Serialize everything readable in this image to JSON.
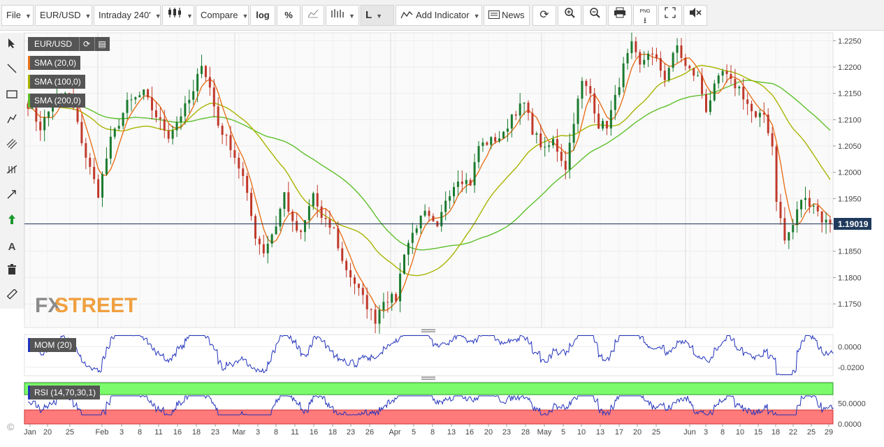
{
  "toolbar": {
    "file": "File",
    "symbol": "EUR/USD",
    "interval": "Intraday 240'",
    "compare": "Compare",
    "log": "log",
    "percent": "%",
    "line_mode": "L",
    "add_indicator": "Add Indicator",
    "news": "News",
    "png": "PNG"
  },
  "left_tools": [
    "cursor-icon",
    "trendline-icon",
    "rectangle-icon",
    "pen-icon",
    "parallel-lines-icon",
    "fibonacci-icon",
    "arrow-icon",
    "up-arrow-icon",
    "text-icon",
    "trash-icon",
    "ruler-icon"
  ],
  "legend": {
    "symbol": "EUR/USD",
    "sma20": "SMA (20,0)",
    "sma100": "SMA (100,0)",
    "sma200": "SMA (200,0)",
    "mom": "MOM (20)",
    "rsi": "RSI (14,70,30,1)"
  },
  "watermark": {
    "fx": "FX",
    "street": "STREET"
  },
  "copyright": "©",
  "colors": {
    "candle_up": "#1a7a2e",
    "candle_down": "#c0392b",
    "sma20": "#e8711c",
    "sma100": "#a8b400",
    "sma200": "#5cc02a",
    "indicator_line": "#2233bb",
    "rsi_overbought": "#7cfc6c",
    "rsi_oversold": "#ff7a7a",
    "price_tag": "#1f3a5c"
  },
  "chart_data": [
    {
      "type": "candlestick",
      "title": "EUR/USD",
      "interval": "Intraday 240'",
      "x_tick_labels": [
        "Jan",
        "20",
        "25",
        "Feb",
        "3",
        "8",
        "11",
        "16",
        "18",
        "23",
        "Mar",
        "3",
        "8",
        "11",
        "16",
        "18",
        "23",
        "26",
        "Apr",
        "5",
        "8",
        "13",
        "16",
        "20",
        "23",
        "28",
        "May",
        "5",
        "10",
        "13",
        "17",
        "20",
        "25",
        "Jun",
        "3",
        "8",
        "10",
        "15",
        "18",
        "22",
        "25",
        "29"
      ],
      "y_tick_labels": [
        "1.2250",
        "1.2200",
        "1.2150",
        "1.2100",
        "1.2050",
        "1.2000",
        "1.1950",
        "1.1900",
        "1.1850",
        "1.1800",
        "1.1750"
      ],
      "ylim": [
        1.1705,
        1.2265
      ],
      "last_price": "1.19019",
      "last_price_value": 1.19019,
      "price_path_anchors": [
        [
          0,
          1.213
        ],
        [
          3,
          1.2085
        ],
        [
          6,
          1.213
        ],
        [
          9,
          1.215
        ],
        [
          11,
          1.212
        ],
        [
          14,
          1.203
        ],
        [
          17,
          1.196
        ],
        [
          20,
          1.206
        ],
        [
          24,
          1.213
        ],
        [
          28,
          1.215
        ],
        [
          30,
          1.212
        ],
        [
          34,
          1.207
        ],
        [
          37,
          1.211
        ],
        [
          40,
          1.215
        ],
        [
          42,
          1.221
        ],
        [
          44,
          1.216
        ],
        [
          46,
          1.209
        ],
        [
          49,
          1.205
        ],
        [
          52,
          1.199
        ],
        [
          55,
          1.188
        ],
        [
          57,
          1.185
        ],
        [
          60,
          1.19
        ],
        [
          62,
          1.196
        ],
        [
          64,
          1.19
        ],
        [
          66,
          1.188
        ],
        [
          69,
          1.196
        ],
        [
          71,
          1.191
        ],
        [
          74,
          1.189
        ],
        [
          76,
          1.183
        ],
        [
          79,
          1.179
        ],
        [
          81,
          1.176
        ],
        [
          84,
          1.172
        ],
        [
          86,
          1.176
        ],
        [
          89,
          1.176
        ],
        [
          91,
          1.185
        ],
        [
          94,
          1.19
        ],
        [
          96,
          1.192
        ],
        [
          99,
          1.189
        ],
        [
          101,
          1.195
        ],
        [
          104,
          1.199
        ],
        [
          107,
          1.198
        ],
        [
          109,
          1.205
        ],
        [
          112,
          1.206
        ],
        [
          115,
          1.207
        ],
        [
          117,
          1.211
        ],
        [
          120,
          1.213
        ],
        [
          122,
          1.208
        ],
        [
          125,
          1.204
        ],
        [
          127,
          1.206
        ],
        [
          130,
          1.201
        ],
        [
          132,
          1.21
        ],
        [
          134,
          1.217
        ],
        [
          136,
          1.215
        ],
        [
          138,
          1.209
        ],
        [
          140,
          1.209
        ],
        [
          142,
          1.214
        ],
        [
          144,
          1.22
        ],
        [
          146,
          1.224
        ],
        [
          148,
          1.22
        ],
        [
          150,
          1.223
        ],
        [
          152,
          1.221
        ],
        [
          154,
          1.218
        ],
        [
          157,
          1.224
        ],
        [
          159,
          1.22
        ],
        [
          162,
          1.218
        ],
        [
          164,
          1.212
        ],
        [
          166,
          1.216
        ],
        [
          168,
          1.219
        ],
        [
          170,
          1.217
        ],
        [
          172,
          1.216
        ],
        [
          174,
          1.213
        ],
        [
          176,
          1.21
        ],
        [
          178,
          1.211
        ],
        [
          180,
          1.205
        ],
        [
          181,
          1.195
        ],
        [
          183,
          1.187
        ],
        [
          185,
          1.19
        ],
        [
          187,
          1.195
        ],
        [
          190,
          1.194
        ],
        [
          192,
          1.191
        ],
        [
          194,
          1.1902
        ]
      ],
      "series": [
        {
          "name": "EUR/USD"
        },
        {
          "name": "SMA (20,0)"
        },
        {
          "name": "SMA (100,0)"
        },
        {
          "name": "SMA (200,0)"
        }
      ]
    },
    {
      "type": "line",
      "title": "MOM (20)",
      "y_tick_labels": [
        "0.0000",
        "-0.0200"
      ],
      "ylim": [
        -0.0283,
        0.0117
      ]
    },
    {
      "type": "line",
      "title": "RSI (14,70,30,1)",
      "y_tick_labels": [
        "50.0000",
        "0.0000"
      ],
      "ylim": [
        0,
        100
      ],
      "overbought": 70,
      "oversold": 30
    }
  ]
}
